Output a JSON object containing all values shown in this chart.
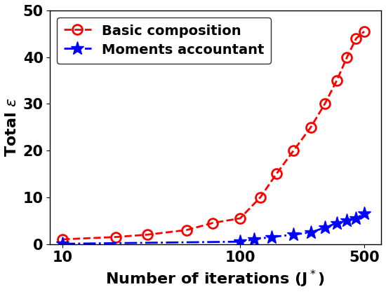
{
  "basic_x": [
    10,
    20,
    30,
    50,
    70,
    100,
    130,
    160,
    200,
    250,
    300,
    350,
    400,
    450,
    500
  ],
  "basic_y": [
    1.0,
    1.5,
    2.0,
    3.0,
    4.5,
    5.5,
    10.0,
    15.0,
    20.0,
    25.0,
    30.0,
    35.0,
    40.0,
    44.0,
    45.5
  ],
  "moments_x": [
    10,
    100,
    120,
    150,
    200,
    250,
    300,
    350,
    400,
    450,
    500
  ],
  "moments_y": [
    0.05,
    0.5,
    1.0,
    1.5,
    2.0,
    2.5,
    3.5,
    4.5,
    5.0,
    5.5,
    6.5
  ],
  "basic_label": "Basic composition",
  "moments_label": "Moments accountant",
  "basic_color": "#FF0000",
  "moments_color": "#0000FF",
  "xlabel": "Number of iterations (J$^*$)",
  "ylabel": "Total $\\epsilon$",
  "xlim": [
    8.5,
    620
  ],
  "ylim": [
    0,
    50
  ],
  "yticks": [
    0,
    10,
    20,
    30,
    40,
    50
  ],
  "xticks": [
    10,
    100,
    500
  ],
  "label_fontsize": 16,
  "legend_fontsize": 14,
  "tick_fontsize": 15,
  "linewidth": 2.0,
  "markersize_circle": 10,
  "markersize_star": 14
}
